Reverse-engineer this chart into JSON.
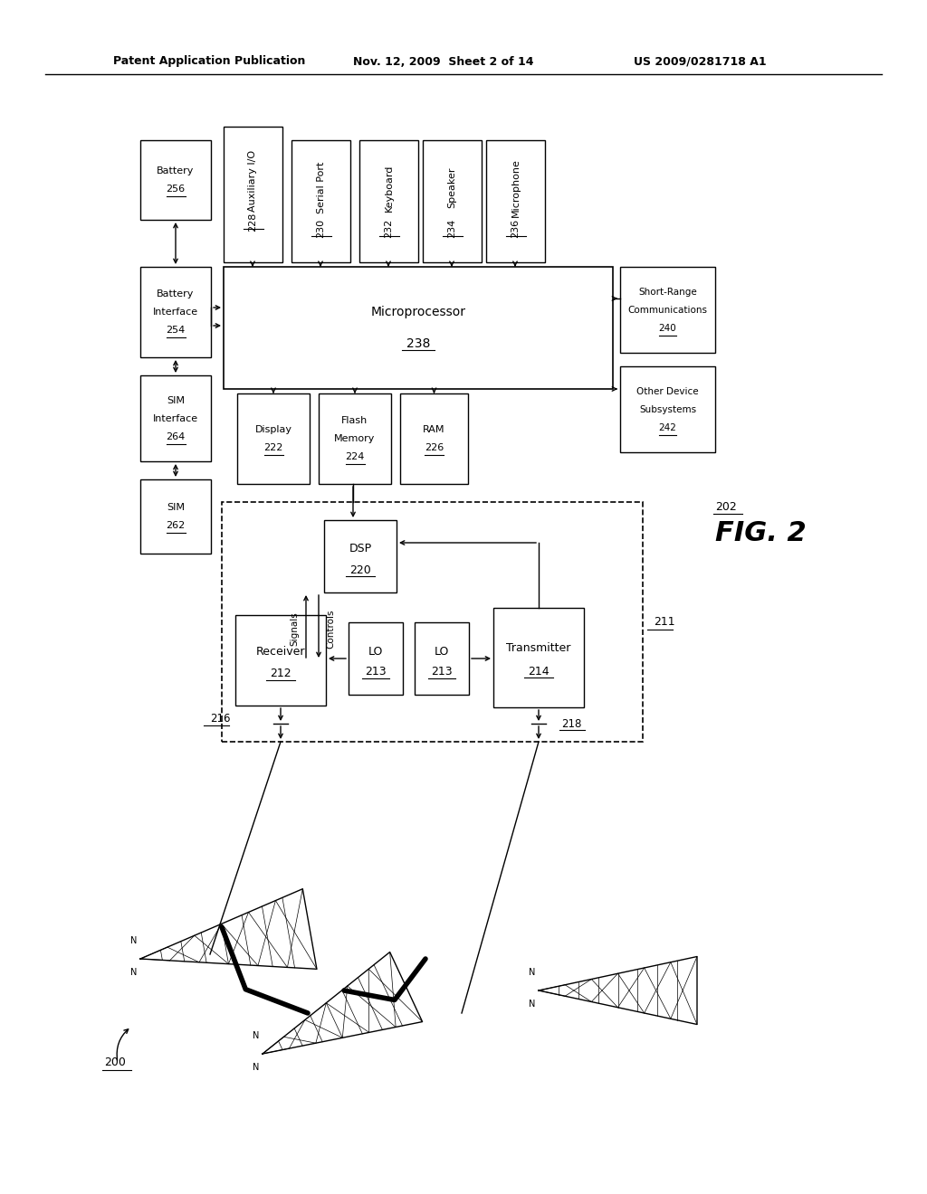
{
  "bg_color": "#ffffff",
  "header1": "Patent Application Publication",
  "header2": "Nov. 12, 2009  Sheet 2 of 14",
  "header3": "US 2009/0281718 A1"
}
